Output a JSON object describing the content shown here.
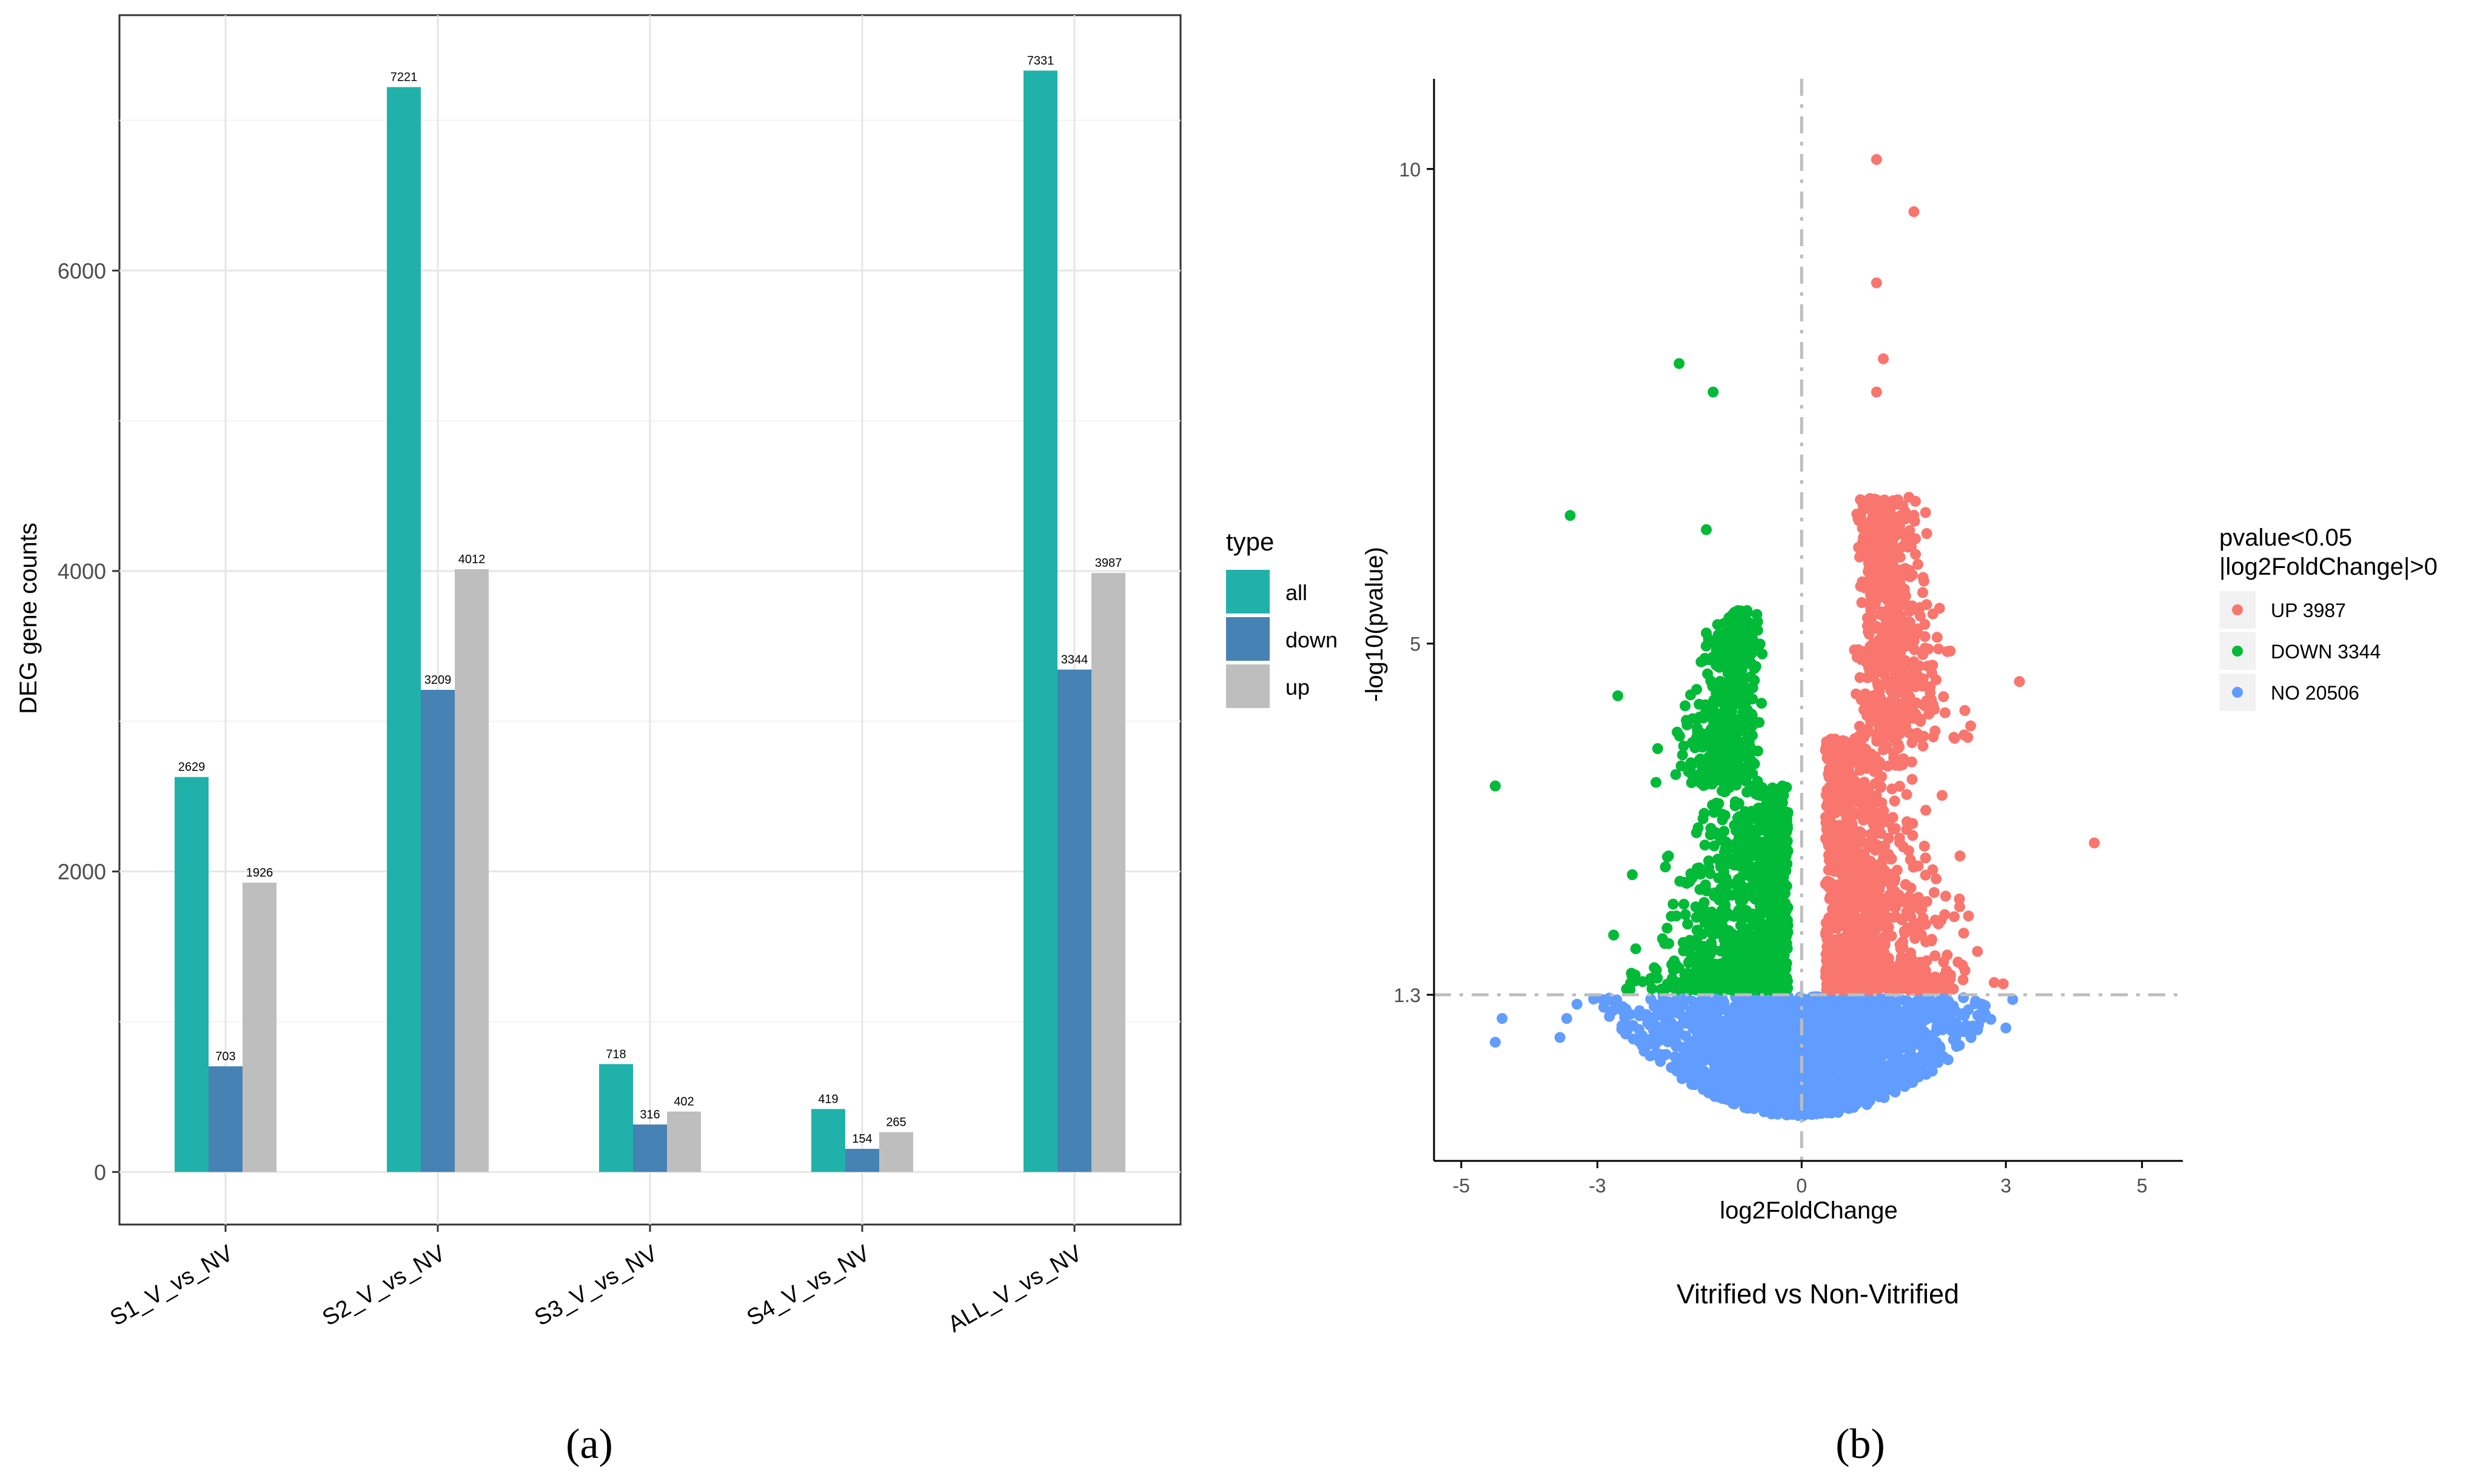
{
  "chart_data": [
    {
      "type": "bar",
      "panel_label": "(a)",
      "ylabel": "DEG gene counts",
      "xlabel": "",
      "categories": [
        "S1_V_vs_NV",
        "S2_V_vs_NV",
        "S3_V_vs_NV",
        "S4_V_vs_NV",
        "ALL_V_vs_NV"
      ],
      "series": [
        {
          "name": "all",
          "color": "#20B2AA",
          "values": [
            2629,
            7221,
            718,
            419,
            7331
          ]
        },
        {
          "name": "down",
          "color": "#4682B4",
          "values": [
            703,
            3209,
            316,
            154,
            3344
          ]
        },
        {
          "name": "up",
          "color": "#BEBEBE",
          "values": [
            1926,
            4012,
            402,
            265,
            3987
          ]
        }
      ],
      "yticks": [
        0,
        2000,
        4000,
        6000
      ],
      "ytick_labels": [
        "0",
        "2000",
        "4000",
        "6000"
      ],
      "ylim": [
        -350,
        7700
      ],
      "grid": true,
      "legend": {
        "title": "type",
        "position": "right",
        "entries": [
          "all",
          "down",
          "up"
        ]
      }
    },
    {
      "type": "scatter",
      "panel_label": "(b)",
      "title": "",
      "xlabel": "log2FoldChange",
      "ylabel": "-log10(pvalue)",
      "caption": "Vitrified vs Non-Vitrified",
      "xticks": [
        -5,
        -3,
        0,
        3,
        5
      ],
      "xtick_labels": [
        "-5",
        "-3",
        "0",
        "3",
        "5"
      ],
      "yticks": [
        1.3,
        5,
        10
      ],
      "ytick_labels": [
        "1.3",
        "5",
        "10"
      ],
      "xlim": [
        -5.4,
        5.6
      ],
      "ylim": [
        -0.45,
        10.95
      ],
      "threshold_lines": {
        "x": 0,
        "y": 1.3
      },
      "grid": false,
      "legend": {
        "title_line1": "pvalue<0.05",
        "title_line2": "|log2FoldChange|>0",
        "position": "right",
        "entries": [
          {
            "label": "UP 3987",
            "color": "#F8766D"
          },
          {
            "label": "DOWN 3344",
            "color": "#00BA38"
          },
          {
            "label": "NO 20506",
            "color": "#619CFF"
          }
        ]
      },
      "series": [
        {
          "name": "UP 3987",
          "color": "#F8766D",
          "count": 3987
        },
        {
          "name": "DOWN 3344",
          "color": "#00BA38",
          "count": 3344
        },
        {
          "name": "NO 20506",
          "color": "#619CFF",
          "count": 20506
        }
      ],
      "notable_points": [
        {
          "x": 1.1,
          "y": 10.1
        },
        {
          "x": 1.65,
          "y": 9.55
        },
        {
          "x": 1.1,
          "y": 8.8
        },
        {
          "x": 1.2,
          "y": 8.0
        },
        {
          "x": 1.1,
          "y": 7.65
        },
        {
          "x": -1.8,
          "y": 7.95
        },
        {
          "x": -1.3,
          "y": 7.65
        },
        {
          "x": -3.4,
          "y": 6.35
        },
        {
          "x": -1.4,
          "y": 6.2
        },
        {
          "x": -4.5,
          "y": 3.5
        },
        {
          "x": 4.3,
          "y": 2.9
        },
        {
          "x": 3.2,
          "y": 4.6
        },
        {
          "x": -2.7,
          "y": 4.45
        },
        {
          "x": -4.4,
          "y": 1.05
        },
        {
          "x": -4.5,
          "y": 0.8
        }
      ]
    }
  ]
}
